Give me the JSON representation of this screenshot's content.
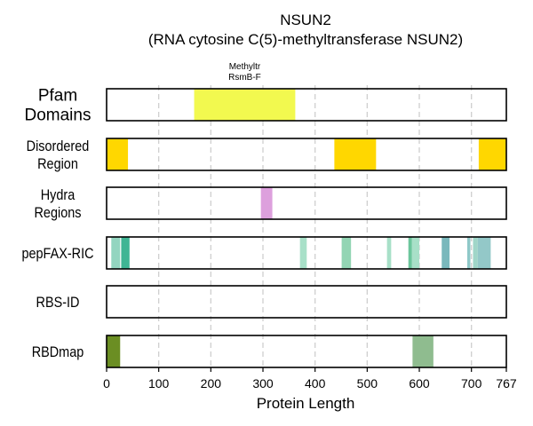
{
  "chart_data": {
    "type": "track",
    "title_line1": "NSUN2",
    "title_line2": "(RNA cytosine C(5)-methyltransferase NSUN2)",
    "xlabel": "Protein Length",
    "xlim": [
      0,
      767
    ],
    "xticks": [
      0,
      100,
      200,
      300,
      400,
      500,
      600,
      700,
      767
    ],
    "grid": "vertical dashed",
    "tracks": [
      {
        "label": [
          "Pfam",
          "Domains"
        ],
        "segments": [
          {
            "start": 168,
            "end": 362,
            "color": "#f2f94f",
            "label": [
              "Methyltr",
              "RsmB-F"
            ]
          }
        ]
      },
      {
        "label": [
          "Disordered",
          "Region"
        ],
        "segments": [
          {
            "start": 0,
            "end": 41,
            "color": "#ffd700"
          },
          {
            "start": 437,
            "end": 517,
            "color": "#ffd700"
          },
          {
            "start": 714,
            "end": 767,
            "color": "#ffd700"
          }
        ]
      },
      {
        "label": [
          "Hydra",
          "Regions"
        ],
        "segments": [
          {
            "start": 296,
            "end": 318,
            "color": "#dda0dd"
          }
        ]
      },
      {
        "label": [
          "pepFAX-RIC"
        ],
        "segments": [
          {
            "start": 9,
            "end": 26,
            "color": "#93d5c0"
          },
          {
            "start": 28,
            "end": 44,
            "color": "#3fb594"
          },
          {
            "start": 371,
            "end": 384,
            "color": "#a8e0c8"
          },
          {
            "start": 451,
            "end": 469,
            "color": "#93d5b4"
          },
          {
            "start": 538,
            "end": 546,
            "color": "#a8e0c8"
          },
          {
            "start": 579,
            "end": 586,
            "color": "#6cc69c"
          },
          {
            "start": 586,
            "end": 600,
            "color": "#a8e0c8"
          },
          {
            "start": 643,
            "end": 658,
            "color": "#7ab8bc"
          },
          {
            "start": 692,
            "end": 698,
            "color": "#8fc8c8"
          },
          {
            "start": 703,
            "end": 712,
            "color": "#a0d6c8"
          },
          {
            "start": 712,
            "end": 737,
            "color": "#93c8c8"
          }
        ]
      },
      {
        "label": [
          "RBS-ID"
        ],
        "segments": []
      },
      {
        "label": [
          "RBDmap"
        ],
        "segments": [
          {
            "start": 0,
            "end": 26,
            "color": "#6b8e23"
          },
          {
            "start": 587,
            "end": 627,
            "color": "#8fbc8f"
          }
        ]
      }
    ]
  }
}
